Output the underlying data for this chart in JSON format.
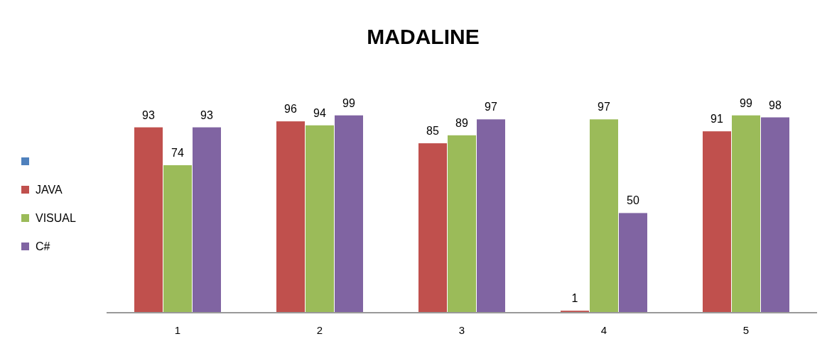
{
  "chart_data": {
    "type": "bar",
    "title": "MADALINE",
    "categories": [
      "1",
      "2",
      "3",
      "4",
      "5"
    ],
    "series": [
      {
        "color": "#4f81bd",
        "values": [
          null,
          null,
          null,
          null,
          null
        ]
      },
      {
        "name": "JAVA",
        "color": "#c0504d",
        "values": [
          93,
          96,
          85,
          1,
          91
        ]
      },
      {
        "name": "VISUAL",
        "color": "#9bbb59",
        "values": [
          74,
          94,
          89,
          97,
          99
        ]
      },
      {
        "name": "C#",
        "color": "#8064a2",
        "values": [
          93,
          99,
          97,
          50,
          98
        ]
      }
    ],
    "tick_labels": "x",
    "data_labels": true,
    "legend": "left",
    "grid": false
  }
}
